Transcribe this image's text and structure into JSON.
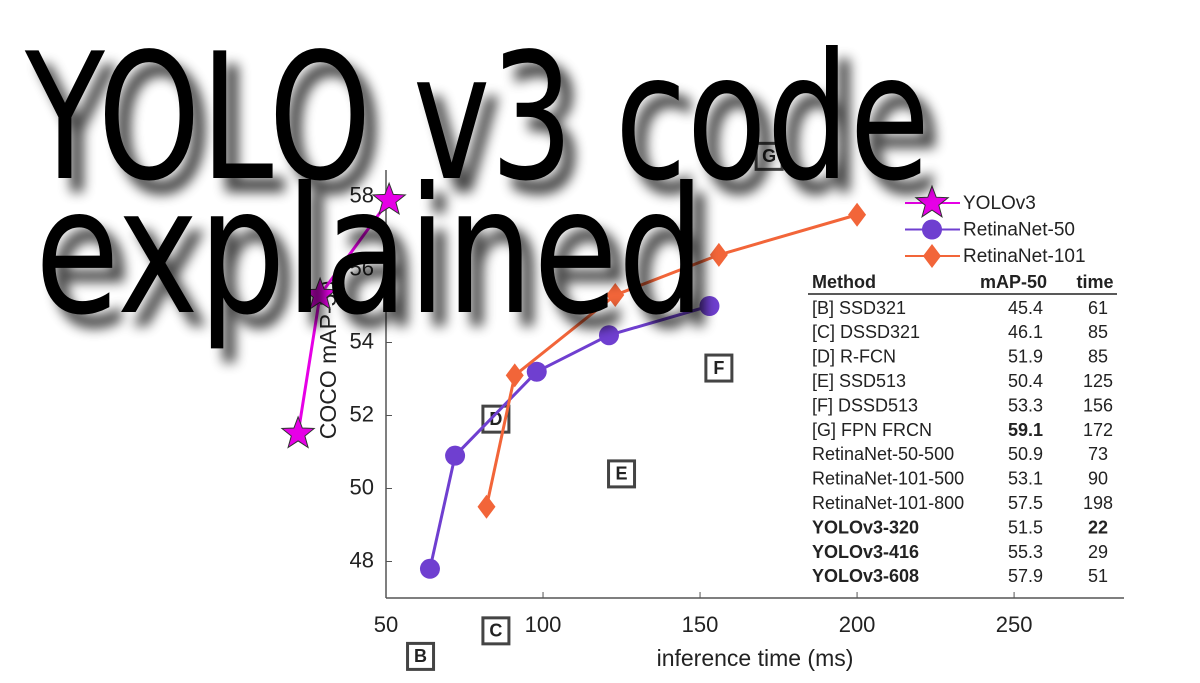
{
  "headline": [
    "YOLO v3 code",
    "explained"
  ],
  "chart_data": {
    "type": "line",
    "xlabel": "inference time (ms)",
    "ylabel": "COCO mAP-50",
    "xlim": [
      50,
      285
    ],
    "ylim": [
      47,
      60
    ],
    "xticks": [
      50,
      100,
      150,
      200,
      250
    ],
    "yticks": [
      48,
      50,
      52,
      54,
      56,
      58
    ],
    "legend": "top-right",
    "series": [
      {
        "name": "YOLOv3",
        "color": "#e600e6",
        "marker": "star",
        "x": [
          22,
          29,
          51
        ],
        "values": [
          51.5,
          55.3,
          57.9
        ]
      },
      {
        "name": "RetinaNet-50",
        "color": "#6f3fd0",
        "marker": "circle",
        "x": [
          64,
          72,
          98,
          121,
          153
        ],
        "values": [
          47.8,
          50.9,
          53.2,
          54.2,
          55.0
        ]
      },
      {
        "name": "RetinaNet-101",
        "color": "#f26539",
        "marker": "diamond",
        "x": [
          82,
          91,
          123,
          156,
          200
        ],
        "values": [
          49.5,
          53.1,
          55.3,
          56.4,
          57.5
        ]
      }
    ],
    "table": {
      "columns": [
        "Method",
        "mAP-50",
        "time"
      ],
      "rows": [
        {
          "method": "[B] SSD321",
          "map": 45.4,
          "time": 61,
          "marker": "B"
        },
        {
          "method": "[C] DSSD321",
          "map": 46.1,
          "time": 85,
          "marker": "C"
        },
        {
          "method": "[D] R-FCN",
          "map": 51.9,
          "time": 85,
          "marker": "D"
        },
        {
          "method": "[E] SSD513",
          "map": 50.4,
          "time": 125,
          "marker": "E"
        },
        {
          "method": "[F] DSSD513",
          "map": 53.3,
          "time": 156,
          "marker": "F"
        },
        {
          "method": "[G] FPN FRCN",
          "map": 59.1,
          "time": 172,
          "marker": "G",
          "bold": [
            "map"
          ]
        },
        {
          "method": "RetinaNet-50-500",
          "map": 50.9,
          "time": 73
        },
        {
          "method": "RetinaNet-101-500",
          "map": 53.1,
          "time": 90
        },
        {
          "method": "RetinaNet-101-800",
          "map": 57.5,
          "time": 198
        },
        {
          "method": "YOLOv3-320",
          "map": 51.5,
          "time": 22,
          "bold": [
            "method",
            "time"
          ]
        },
        {
          "method": "YOLOv3-416",
          "map": 55.3,
          "time": 29,
          "bold": [
            "method"
          ]
        },
        {
          "method": "YOLOv3-608",
          "map": 57.9,
          "time": 51,
          "bold": [
            "method"
          ]
        }
      ]
    }
  }
}
